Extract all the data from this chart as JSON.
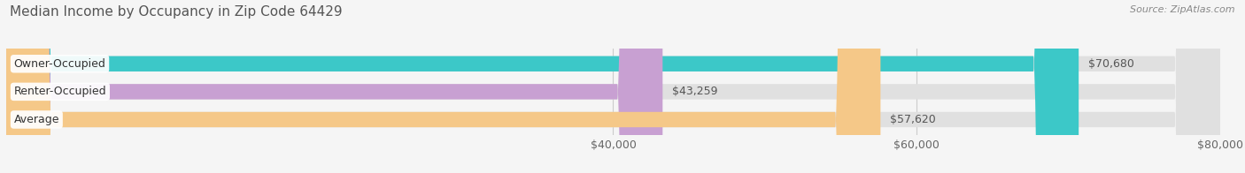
{
  "title": "Median Income by Occupancy in Zip Code 64429",
  "source": "Source: ZipAtlas.com",
  "categories": [
    "Owner-Occupied",
    "Renter-Occupied",
    "Average"
  ],
  "values": [
    70680,
    43259,
    57620
  ],
  "labels": [
    "$70,680",
    "$43,259",
    "$57,620"
  ],
  "bar_colors": [
    "#3cc8c8",
    "#c8a0d2",
    "#f5c888"
  ],
  "xlim": [
    0,
    80000
  ],
  "xticks": [
    40000,
    60000,
    80000
  ],
  "xtick_labels": [
    "$40,000",
    "$60,000",
    "$80,000"
  ],
  "bg_color": "#f5f5f5",
  "bar_bg_color": "#e0e0e0",
  "title_fontsize": 11,
  "source_fontsize": 8,
  "label_fontsize": 9,
  "tick_fontsize": 9,
  "bar_height": 0.55,
  "fig_width": 14.06,
  "fig_height": 1.96
}
